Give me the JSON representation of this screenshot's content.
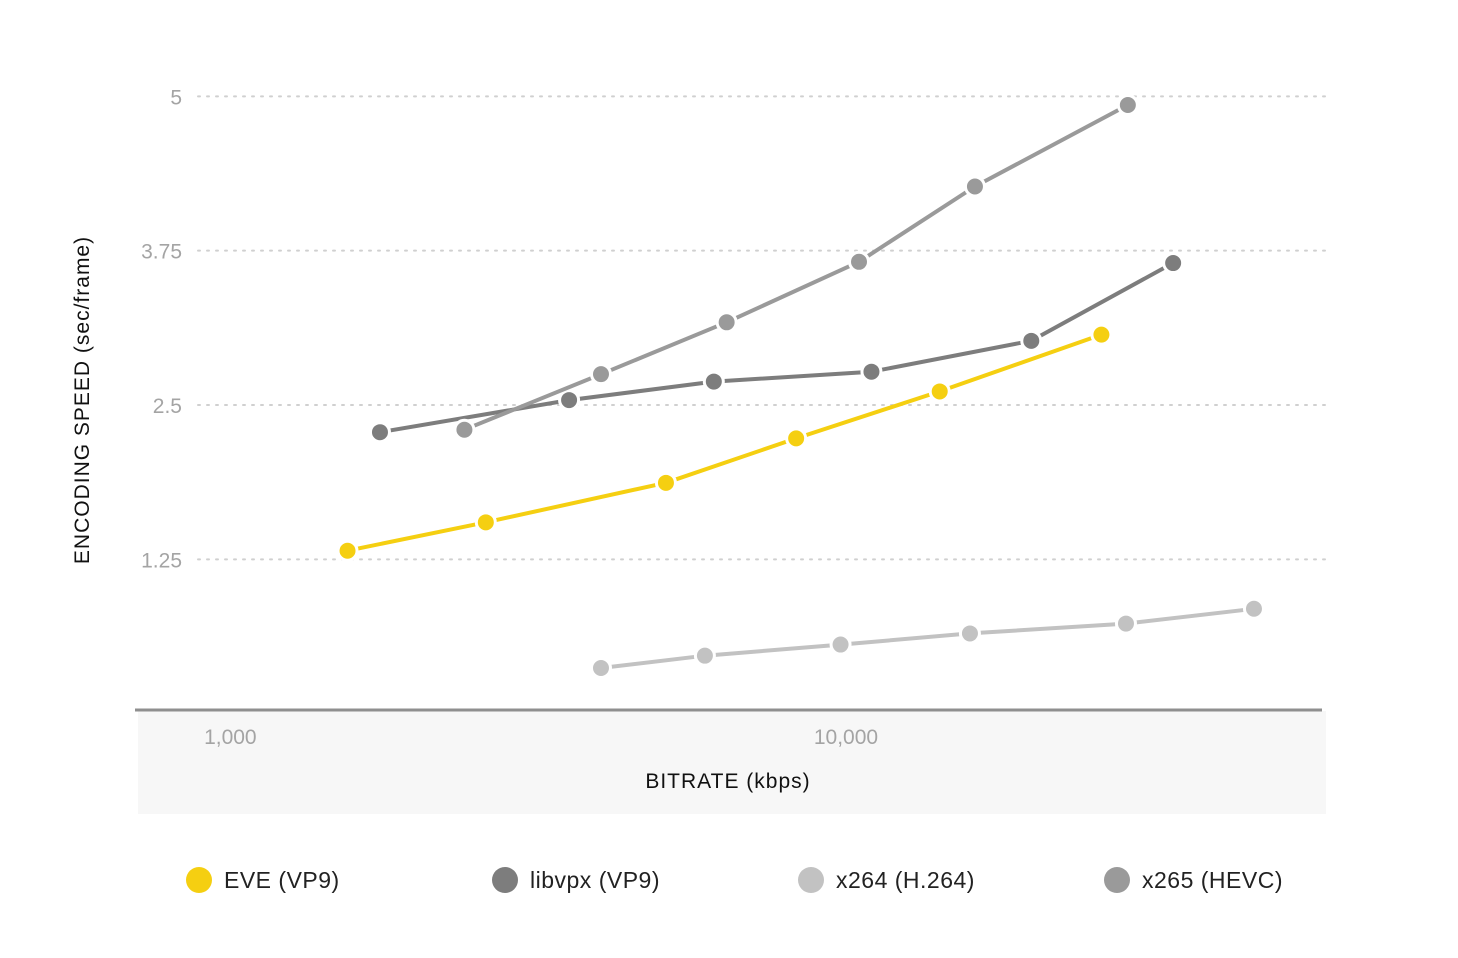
{
  "chart_data": {
    "type": "line",
    "xlabel": "BITRATE (kbps)",
    "ylabel": "ENCODING SPEED (sec/frame)",
    "x_scale": "log",
    "x_ticks": [
      {
        "value": 1000,
        "label": "1,000"
      },
      {
        "value": 10000,
        "label": "10,000"
      }
    ],
    "xlim": [
      700,
      60000
    ],
    "y_ticks": [
      {
        "value": 1.25,
        "label": "1.25"
      },
      {
        "value": 2.5,
        "label": "2.5"
      },
      {
        "value": 3.75,
        "label": "3.75"
      },
      {
        "value": 5,
        "label": "5"
      }
    ],
    "ylim": [
      0.03,
      5.1
    ],
    "grid": "horizontal dotted",
    "legend_position": "bottom",
    "series": [
      {
        "name": "EVE (VP9)",
        "color": "#f5cf11",
        "x": [
          1550,
          2600,
          5100,
          8300,
          14200,
          26000
        ],
        "y": [
          1.32,
          1.55,
          1.87,
          2.23,
          2.61,
          3.07
        ]
      },
      {
        "name": "libvpx (VP9)",
        "color": "#7d7d7d",
        "x": [
          1750,
          3550,
          6100,
          11000,
          20000,
          34000
        ],
        "y": [
          2.28,
          2.54,
          2.69,
          2.77,
          3.02,
          3.65
        ]
      },
      {
        "name": "x264 (H.264)",
        "color": "#c2c2c2",
        "x": [
          4000,
          5900,
          9800,
          15900,
          28500,
          46000
        ],
        "y": [
          0.37,
          0.47,
          0.56,
          0.65,
          0.73,
          0.85
        ]
      },
      {
        "name": "x265 (HEVC)",
        "color": "#9a9a9a",
        "x": [
          2400,
          4000,
          6400,
          10500,
          16200,
          28700
        ],
        "y": [
          2.3,
          2.75,
          3.17,
          3.66,
          4.27,
          4.93
        ]
      }
    ]
  }
}
